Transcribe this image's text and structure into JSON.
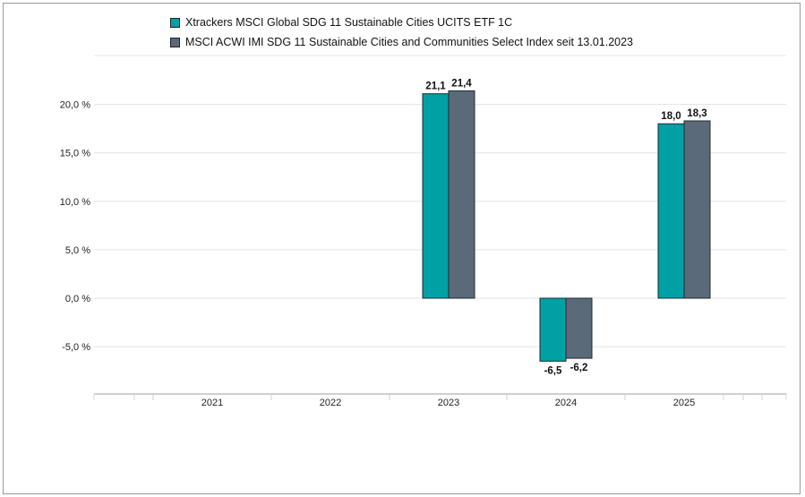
{
  "chart_data": {
    "type": "bar",
    "categories": [
      "2021",
      "2022",
      "2023",
      "2024",
      "2025"
    ],
    "series": [
      {
        "name": "Xtrackers MSCI Global SDG 11 Sustainable Cities UCITS ETF 1C",
        "color": "#00a0a5",
        "values": [
          null,
          null,
          21.1,
          -6.5,
          18.0
        ],
        "labels": [
          "",
          "",
          "21,1",
          "-6,5",
          "18,0"
        ]
      },
      {
        "name": "MSCI ACWI IMI SDG 11 Sustainable Cities and Communities Select Index seit 13.01.2023",
        "color": "#5a6a78",
        "values": [
          null,
          null,
          21.4,
          -6.2,
          18.3
        ],
        "labels": [
          "",
          "",
          "21,4",
          "-6,2",
          "18,3"
        ]
      }
    ],
    "yticks": [
      20,
      15,
      10,
      5,
      0,
      -5
    ],
    "ytick_labels": [
      "20,0 %",
      "15,0 %",
      "10,0 %",
      "5,0 %",
      "0,0 %",
      "-5,0 %"
    ],
    "ylim": [
      -10,
      25
    ],
    "grid": true,
    "legend_position": "top-left"
  }
}
